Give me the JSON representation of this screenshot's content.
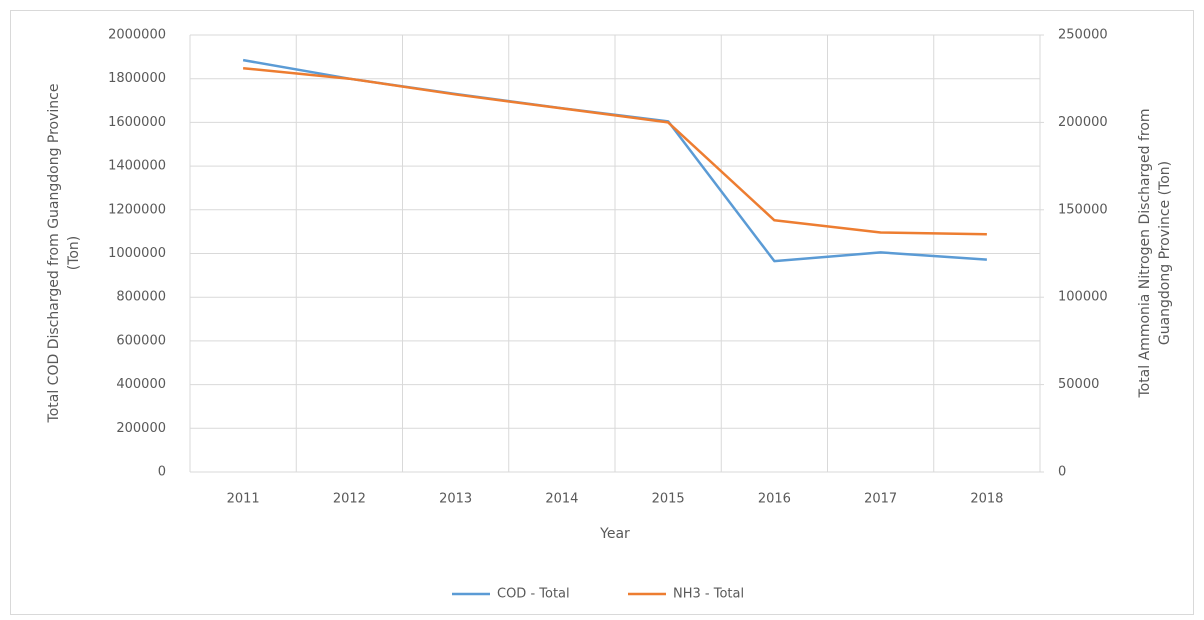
{
  "chart_data": {
    "type": "line",
    "categories": [
      "2011",
      "2012",
      "2013",
      "2014",
      "2015",
      "2016",
      "2017",
      "2018"
    ],
    "xlabel": "Year",
    "ylabel": [
      "Total COD Discharged from Guangdong Province",
      "(Ton)"
    ],
    "y2label": [
      "Total Ammonia Nitrogen Discharged from",
      "Guangdong Province (Ton)"
    ],
    "ylim": [
      0,
      2000000
    ],
    "yticks": [
      0,
      200000,
      400000,
      600000,
      800000,
      1000000,
      1200000,
      1400000,
      1600000,
      1800000,
      2000000
    ],
    "y2lim": [
      0,
      250000
    ],
    "y2ticks": [
      0,
      50000,
      100000,
      150000,
      200000,
      250000
    ],
    "grid": true,
    "legend": "bottom",
    "series": [
      {
        "name": "COD -  Total",
        "color": "#5b9bd5",
        "values": [
          1885000,
          1800000,
          1730000,
          1665000,
          1605000,
          965000,
          1005000,
          972000
        ]
      },
      {
        "name": "NH3 -  Total",
        "color": "#ed7d31",
        "axis": "y2",
        "values": [
          231000,
          225000,
          216000,
          208000,
          200000,
          144000,
          137000,
          136000
        ]
      }
    ]
  }
}
